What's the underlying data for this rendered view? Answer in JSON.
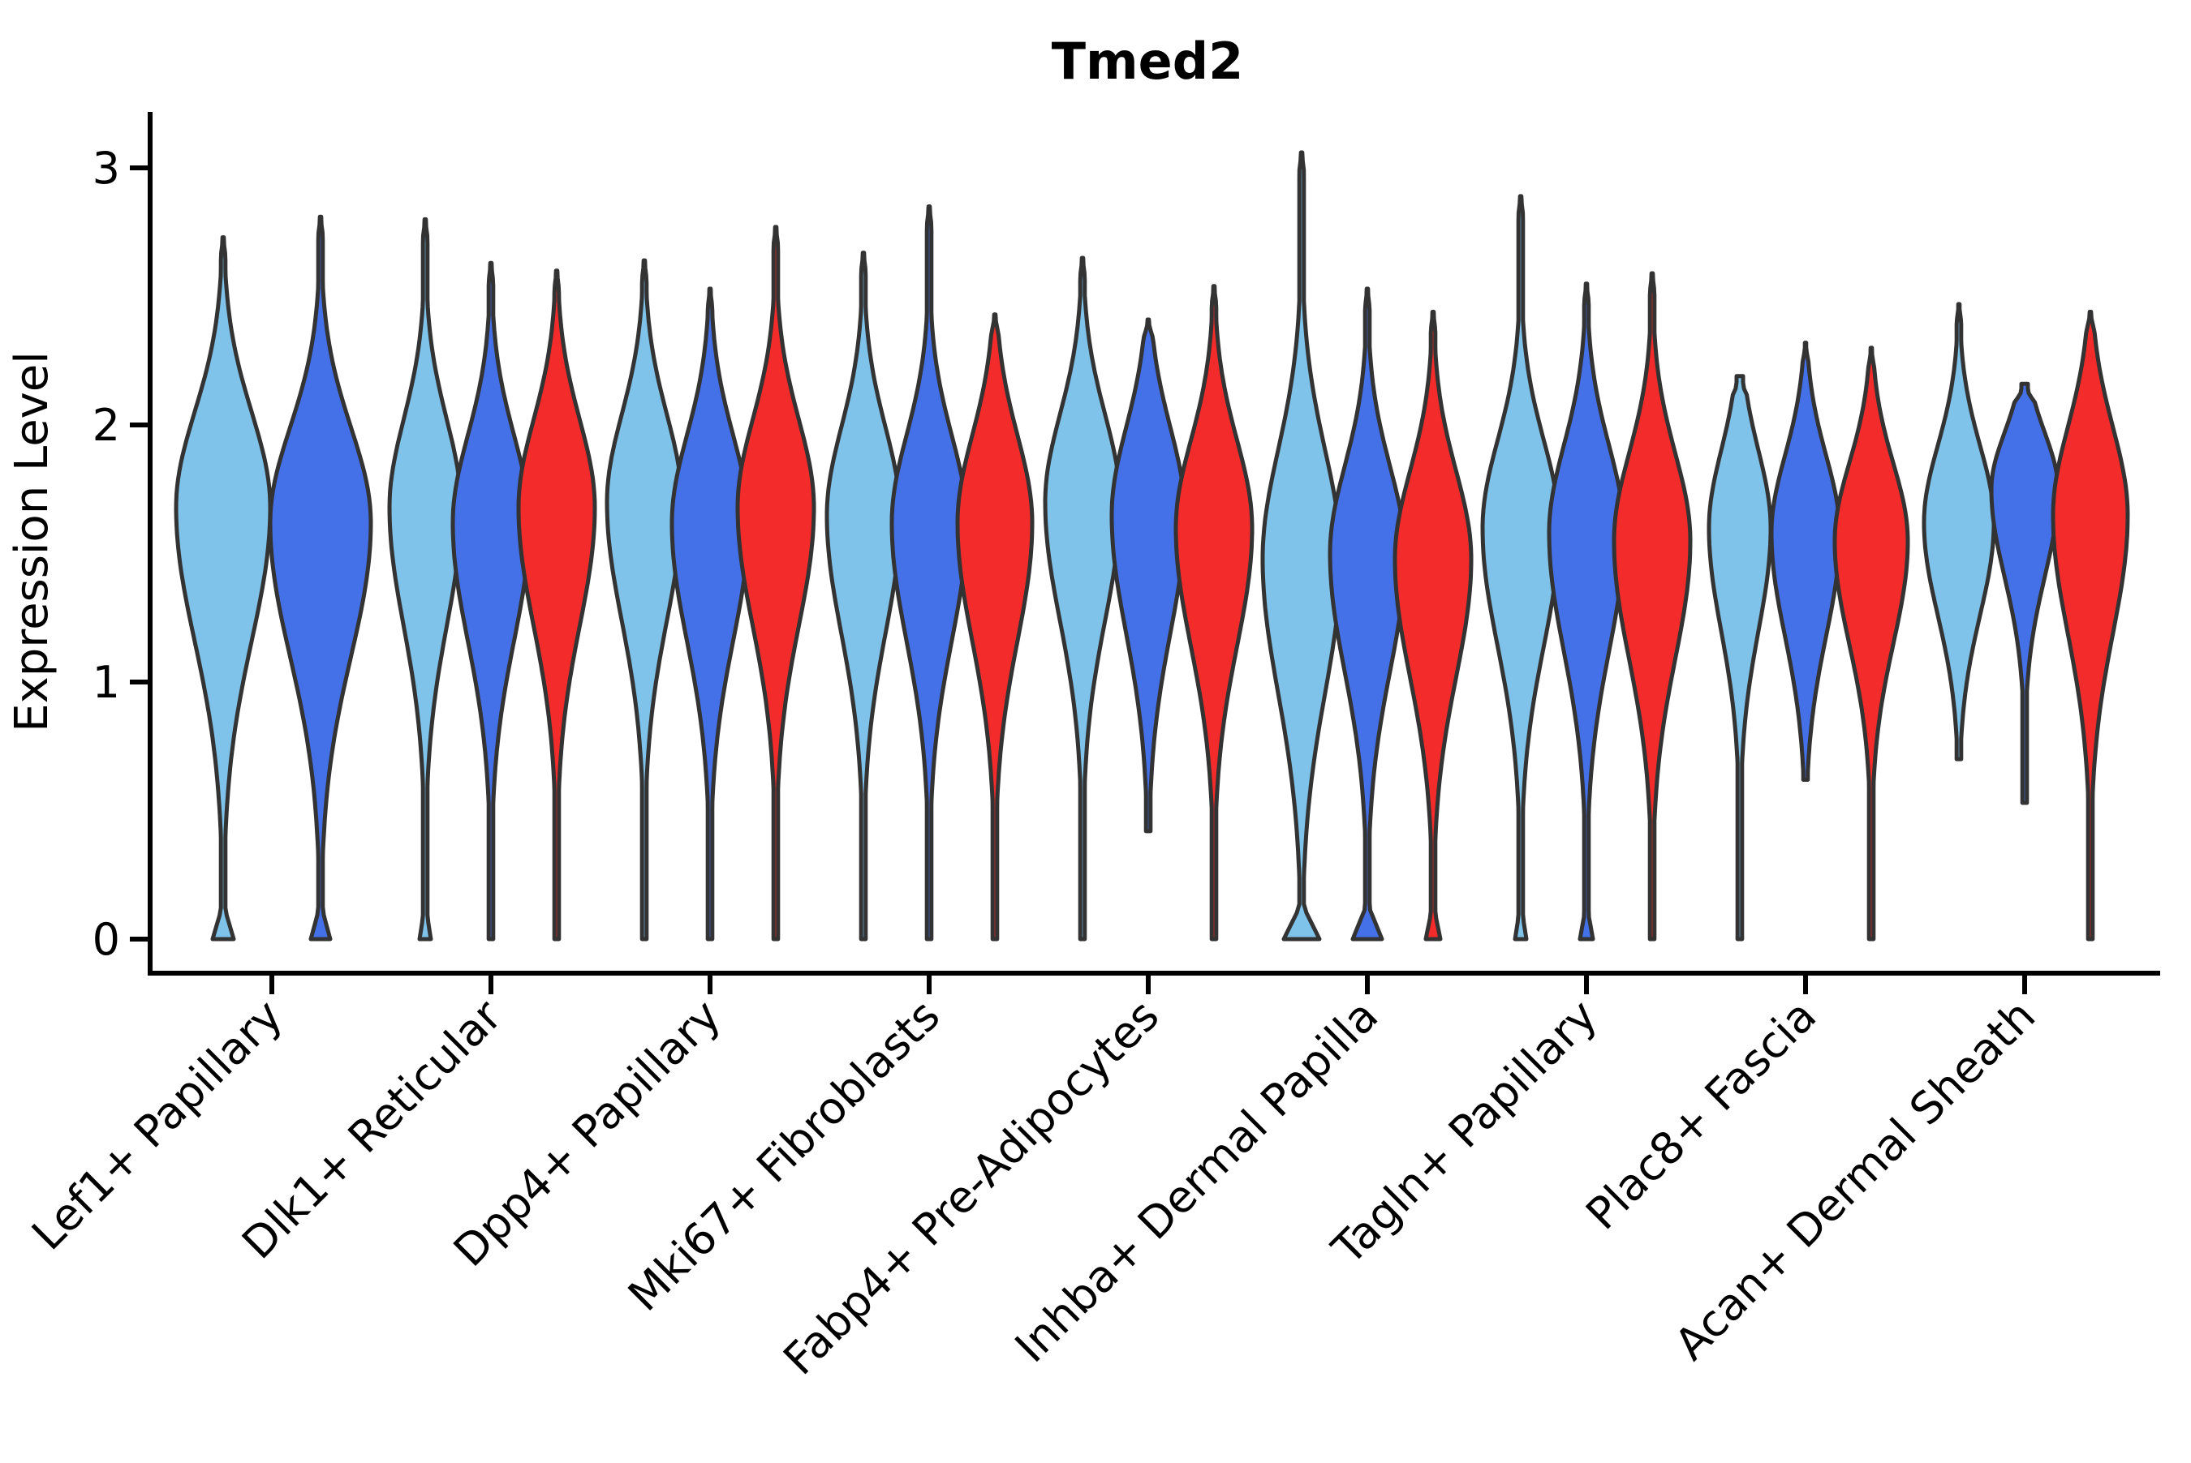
{
  "chart_data": {
    "type": "violin",
    "title": "Tmed2",
    "ylabel": "Expression Level",
    "xlabel": "",
    "ylim": [
      -0.13,
      3.22
    ],
    "yticks": [
      0,
      1,
      2,
      3
    ],
    "x_tick_rotation": 45,
    "grid": false,
    "legend": "none",
    "background": "#ffffff",
    "outline_color": "#333333",
    "colors": {
      "light_blue": "#7FC3EA",
      "dark_blue": "#4470E8",
      "red": "#F32B2B"
    },
    "categories": [
      "Lef1+ Papillary",
      "Dlk1+ Reticular",
      "Dpp4+ Papillary",
      "Mki67+ Fibroblasts",
      "Fabp4+ Pre-Adipocytes",
      "Inhba+ Dermal Papilla",
      "Tagln+ Papillary",
      "Plac8+ Fascia",
      "Acan+ Dermal Sheath"
    ],
    "groups": [
      {
        "category": "Lef1+ Papillary",
        "violins": [
          {
            "color": "light_blue",
            "max": 2.73,
            "min": 0,
            "mode": 1.68,
            "half_width": 58,
            "zero_blob": 13,
            "st": 0.37,
            "sb": 0.52
          },
          {
            "color": "dark_blue",
            "max": 2.81,
            "min": 0,
            "mode": 1.62,
            "half_width": 62,
            "zero_blob": 12,
            "st": 0.37,
            "sb": 0.52
          }
        ]
      },
      {
        "category": "Dlk1+ Reticular",
        "violins": [
          {
            "color": "light_blue",
            "max": 2.8,
            "min": 0,
            "mode": 1.68,
            "half_width": 44,
            "zero_blob": 7
          },
          {
            "color": "dark_blue",
            "max": 2.63,
            "min": 0,
            "mode": 1.62,
            "half_width": 47,
            "zero_blob": 0
          },
          {
            "color": "red",
            "max": 2.6,
            "min": 0,
            "mode": 1.68,
            "half_width": 47,
            "zero_blob": 0
          }
        ]
      },
      {
        "category": "Dpp4+ Papillary",
        "violins": [
          {
            "color": "light_blue",
            "max": 2.64,
            "min": 0,
            "mode": 1.7,
            "half_width": 46,
            "zero_blob": 0
          },
          {
            "color": "dark_blue",
            "max": 2.53,
            "min": 0,
            "mode": 1.62,
            "half_width": 47,
            "zero_blob": 0
          },
          {
            "color": "red",
            "max": 2.77,
            "min": 0,
            "mode": 1.68,
            "half_width": 47,
            "zero_blob": 0
          }
        ]
      },
      {
        "category": "Mki67+ Fibroblasts",
        "violins": [
          {
            "color": "light_blue",
            "max": 2.67,
            "min": 0,
            "mode": 1.65,
            "half_width": 45,
            "zero_blob": 0
          },
          {
            "color": "dark_blue",
            "max": 2.85,
            "min": 0,
            "mode": 1.62,
            "half_width": 46,
            "zero_blob": 0
          },
          {
            "color": "red",
            "max": 2.43,
            "min": 0,
            "mode": 1.62,
            "half_width": 46,
            "zero_blob": 0
          }
        ]
      },
      {
        "category": "Fabp4+ Pre-Adipocytes",
        "violins": [
          {
            "color": "light_blue",
            "max": 2.65,
            "min": 0,
            "mode": 1.7,
            "half_width": 46,
            "zero_blob": 0
          },
          {
            "color": "dark_blue",
            "max": 2.41,
            "min": 0.42,
            "mode": 1.65,
            "half_width": 45,
            "zero_blob": 0
          },
          {
            "color": "red",
            "max": 2.54,
            "min": 0,
            "mode": 1.6,
            "half_width": 47,
            "zero_blob": 0
          }
        ]
      },
      {
        "category": "Inhba+ Dermal Papilla",
        "violins": [
          {
            "color": "light_blue",
            "max": 3.06,
            "min": 0,
            "mode": 1.48,
            "half_width": 48,
            "zero_blob": 22,
            "st": 0.42,
            "sb": 0.52
          },
          {
            "color": "dark_blue",
            "max": 2.53,
            "min": 0,
            "mode": 1.5,
            "half_width": 46,
            "zero_blob": 18
          },
          {
            "color": "red",
            "max": 2.44,
            "min": 0,
            "mode": 1.48,
            "half_width": 47,
            "zero_blob": 9
          }
        ]
      },
      {
        "category": "Tagln+ Papillary",
        "violins": [
          {
            "color": "light_blue",
            "max": 2.89,
            "min": 0,
            "mode": 1.6,
            "half_width": 47,
            "zero_blob": 7
          },
          {
            "color": "dark_blue",
            "max": 2.55,
            "min": 0,
            "mode": 1.58,
            "half_width": 46,
            "zero_blob": 8
          },
          {
            "color": "red",
            "max": 2.59,
            "min": 0,
            "mode": 1.55,
            "half_width": 47,
            "zero_blob": 0
          }
        ]
      },
      {
        "category": "Plac8+ Fascia",
        "violins": [
          {
            "color": "light_blue",
            "max": 2.19,
            "min": 0,
            "mode": 1.6,
            "half_width": 38,
            "zero_blob": 0,
            "st": 0.3,
            "sb": 0.4,
            "cap": 4
          },
          {
            "color": "dark_blue",
            "max": 2.32,
            "min": 0.62,
            "mode": 1.58,
            "half_width": 42,
            "zero_blob": 0,
            "st": 0.3,
            "sb": 0.4
          },
          {
            "color": "red",
            "max": 2.3,
            "min": 0,
            "mode": 1.55,
            "half_width": 45,
            "zero_blob": 0,
            "st": 0.3,
            "sb": 0.4
          }
        ]
      },
      {
        "category": "Acan+ Dermal Sheath",
        "violins": [
          {
            "color": "light_blue",
            "max": 2.47,
            "min": 0.7,
            "mode": 1.62,
            "half_width": 43,
            "zero_blob": 0,
            "st": 0.3,
            "sb": 0.36
          },
          {
            "color": "dark_blue",
            "max": 2.16,
            "min": 0.53,
            "mode": 1.75,
            "half_width": 41,
            "zero_blob": 0,
            "st": 0.22,
            "sb": 0.34,
            "cap": 4
          },
          {
            "color": "red",
            "max": 2.44,
            "min": 0,
            "mode": 1.65,
            "half_width": 46,
            "zero_blob": 0
          }
        ]
      }
    ]
  }
}
